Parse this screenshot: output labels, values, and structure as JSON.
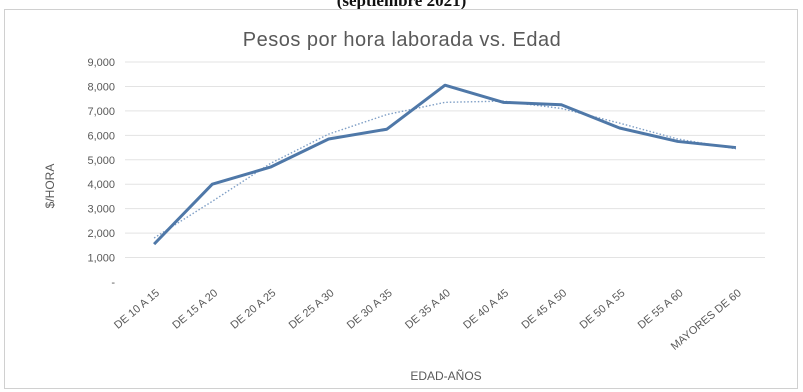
{
  "caption": "(septiembre 2021)",
  "chart_data": {
    "type": "line",
    "title": "Pesos por hora laborada vs. Edad",
    "xlabel": "EDAD-AÑOS",
    "ylabel": "$/HORA",
    "ylim": [
      0,
      9000
    ],
    "yticks": [
      0,
      1000,
      2000,
      3000,
      4000,
      5000,
      6000,
      7000,
      8000,
      9000
    ],
    "ytick_labels": [
      "-",
      "1,000",
      "2,000",
      "3,000",
      "4,000",
      "5,000",
      "6,000",
      "7,000",
      "8,000",
      "9,000"
    ],
    "grid": true,
    "categories": [
      "DE 10 A 15",
      "DE 15 A 20",
      "DE 20 A 25",
      "DE 25 A 30",
      "DE 30 A 35",
      "DE 35 A 40",
      "DE 40 A 45",
      "DE 45 A 50",
      "DE 50 A 55",
      "DE 55 A 60",
      "MAYORES DE 60"
    ],
    "series": [
      {
        "values": [
          1550,
          4000,
          4700,
          5850,
          6250,
          8050,
          7350,
          7250,
          6300,
          5750,
          5500
        ],
        "color": "#4f78a8",
        "style": "solid"
      },
      {
        "values": [
          1800,
          3300,
          4850,
          6050,
          6850,
          7350,
          7400,
          7100,
          6500,
          5850,
          5450
        ],
        "color": "#7f9fc6",
        "style": "dotted"
      }
    ]
  }
}
